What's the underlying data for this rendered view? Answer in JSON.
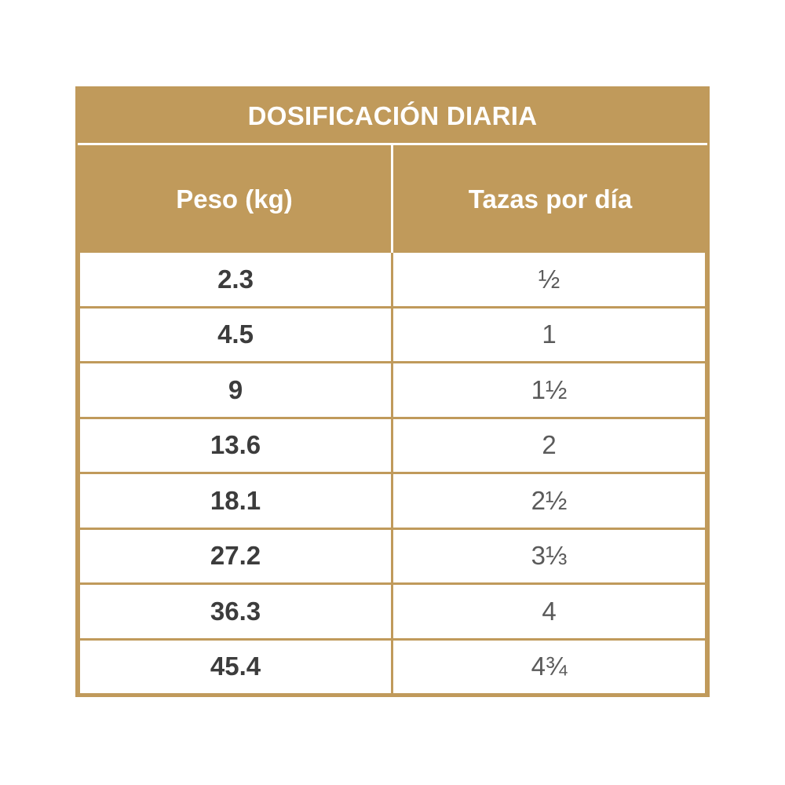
{
  "table": {
    "title": "DOSIFICACIÓN DIARIA",
    "headers": [
      "Peso (kg)",
      "Tazas por día"
    ],
    "rows": [
      {
        "weight": "2.3",
        "cups": "½"
      },
      {
        "weight": "4.5",
        "cups": "1"
      },
      {
        "weight": "9",
        "cups": "1½"
      },
      {
        "weight": "13.6",
        "cups": "2"
      },
      {
        "weight": "18.1",
        "cups": "2½"
      },
      {
        "weight": "27.2",
        "cups": "3⅓"
      },
      {
        "weight": "36.3",
        "cups": "4"
      },
      {
        "weight": "45.4",
        "cups": "4¾"
      }
    ]
  },
  "colors": {
    "accent": "#c09a5b",
    "background": "#ffffff",
    "text": "#3c3c3c"
  }
}
